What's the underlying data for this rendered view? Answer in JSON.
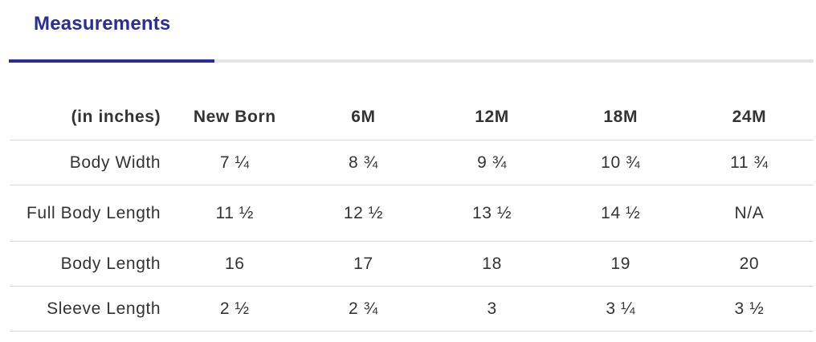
{
  "tabs": {
    "active_label": "Measurements"
  },
  "table": {
    "headers": [
      "(in inches)",
      "New Born",
      "6M",
      "12M",
      "18M",
      "24M"
    ],
    "rows": [
      {
        "label": "Body Width",
        "values": [
          "7 ¼",
          "8 ¾",
          "9 ¾",
          "10 ¾",
          "11 ¾"
        ]
      },
      {
        "label": "Full Body Length",
        "values": [
          "11 ½",
          "12 ½",
          "13 ½",
          "14 ½",
          "N/A"
        ]
      },
      {
        "label": "Body Length",
        "values": [
          "16",
          "17",
          "18",
          "19",
          "20"
        ]
      },
      {
        "label": "Sleeve Length",
        "values": [
          "2 ½",
          "2 ¾",
          "3",
          "3 ¼",
          "3 ½"
        ]
      }
    ]
  },
  "colors": {
    "accent": "#2a2d95",
    "tab_track": "#e4e4ec",
    "text": "#333333",
    "row_border": "#d9d9d9"
  }
}
